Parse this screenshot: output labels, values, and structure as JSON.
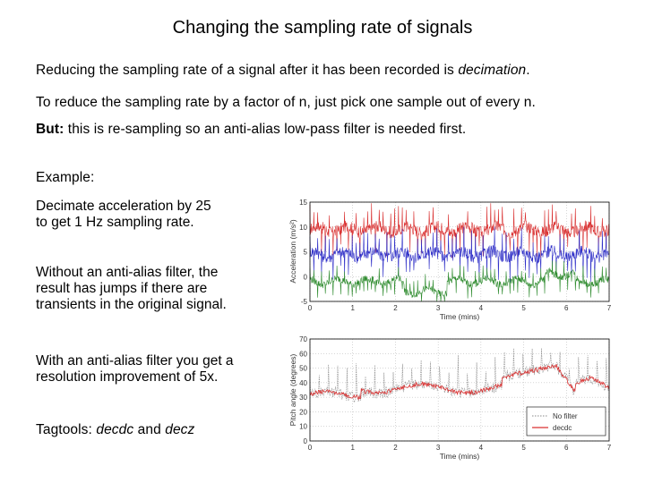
{
  "slide": {
    "title": "Changing the sampling rate of signals",
    "line1": {
      "pre": "Reducing the sampling rate of a signal after it has been recorded is ",
      "em": "decimation",
      "post": "."
    },
    "line2": "To reduce the sampling rate by a factor of n, just pick one sample out of every n.",
    "line3": {
      "strong": "But:",
      "rest": " this is re-sampling so an anti-alias low-pass filter is needed first."
    },
    "example": "Example:",
    "decimate": [
      "Decimate acceleration by 25",
      "to get 1 Hz sampling rate."
    ],
    "without": [
      "Without an anti-alias filter, the",
      "result has jumps if there are",
      "transients in the original signal."
    ],
    "with": [
      "With an anti-alias filter you get a",
      "resolution improvement of 5x."
    ],
    "tagtools": {
      "pre": "Tagtools: ",
      "a": "decdc",
      "mid": " and ",
      "b": "decz"
    }
  },
  "chart_data": [
    {
      "type": "line",
      "ylabel": "Acceleration (m/s²)",
      "xlabel": "Time (mins)",
      "xlim": [
        0,
        7
      ],
      "ylim": [
        -5,
        15
      ],
      "xticks": [
        0,
        1,
        2,
        3,
        4,
        5,
        6,
        7
      ],
      "yticks": [
        15,
        10,
        5,
        0,
        -5
      ],
      "series": [
        {
          "color": "#d93030",
          "mean": 9.5,
          "amp": 2.5
        },
        {
          "color": "#3030c8",
          "mean": 4.5,
          "amp": 2.5
        },
        {
          "color": "#2e8b2e",
          "mean": -1,
          "amp": 1.5
        }
      ]
    },
    {
      "type": "line",
      "ylabel": "Pitch angle (degrees)",
      "xlabel": "Time (mins)",
      "xlim": [
        0,
        7
      ],
      "ylim": [
        0,
        70
      ],
      "xticks": [
        0,
        1,
        2,
        3,
        4,
        5,
        6,
        7
      ],
      "yticks": [
        70,
        60,
        50,
        40,
        30,
        20,
        10,
        0
      ],
      "legend": [
        "No filter",
        "decdc"
      ],
      "legend_position": "bottom-right",
      "series": [
        {
          "name": "No filter",
          "color": "#888888"
        },
        {
          "name": "decdc",
          "color": "#d93030"
        }
      ]
    }
  ]
}
